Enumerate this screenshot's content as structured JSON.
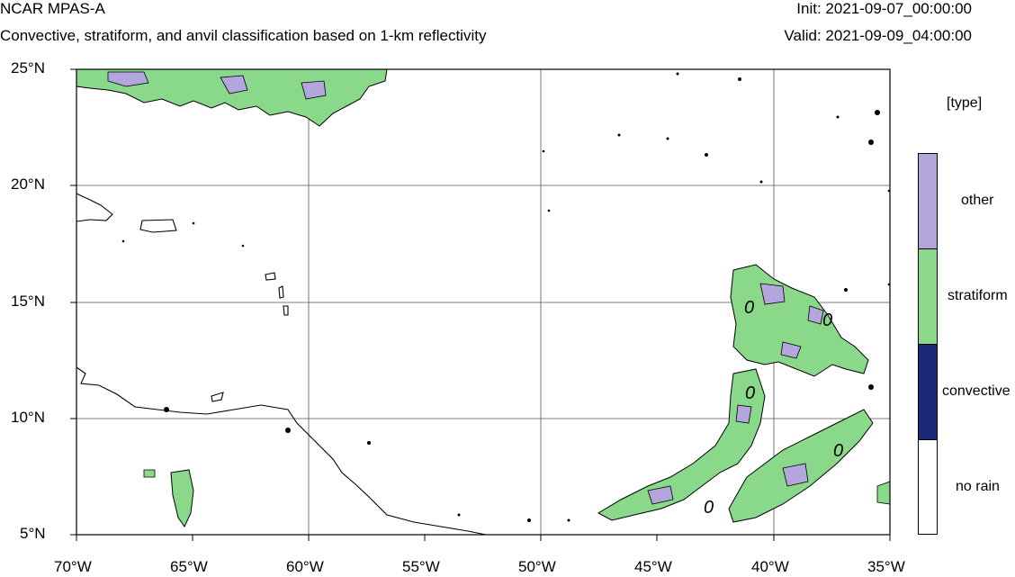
{
  "header": {
    "model": "NCAR MPAS-A",
    "description": "Convective, stratiform, and anvil classification based on 1-km reflectivity",
    "init": "Init: 2021-09-07_00:00:00",
    "valid": "Valid: 2021-09-09_04:00:00"
  },
  "map": {
    "lat_labels": [
      "25°N",
      "20°N",
      "15°N",
      "10°N",
      "5°N"
    ],
    "lon_labels": [
      "70°W",
      "65°W",
      "60°W",
      "55°W",
      "50°W",
      "45°W",
      "40°W",
      "35°W"
    ],
    "lat_range": [
      5,
      25
    ],
    "lon_range": [
      -70,
      -35
    ],
    "contour_label": "0"
  },
  "legend": {
    "title": "[type]",
    "items": [
      {
        "label": "other",
        "color": "#b3a6dd"
      },
      {
        "label": "stratiform",
        "color": "#8ad98a"
      },
      {
        "label": "convective",
        "color": "#1b2a78"
      },
      {
        "label": "no rain",
        "color": "#ffffff"
      }
    ]
  }
}
